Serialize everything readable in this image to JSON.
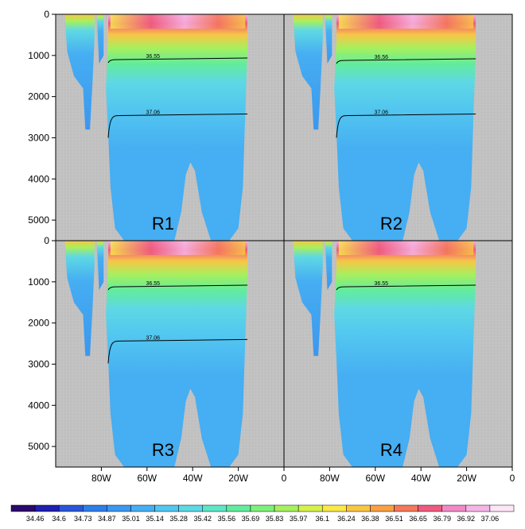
{
  "chart_data": {
    "type": "heatmap",
    "panels": [
      {
        "label": "R1",
        "contours": [
          {
            "value": "36.55",
            "depth": 1100
          },
          {
            "value": "37.06",
            "depth": 2460
          }
        ]
      },
      {
        "label": "R2",
        "contours": [
          {
            "value": "36.56",
            "depth": 1120
          },
          {
            "value": "37.06",
            "depth": 2460
          }
        ]
      },
      {
        "label": "R3",
        "contours": [
          {
            "value": "36.55",
            "depth": 1120
          },
          {
            "value": "37.06",
            "depth": 2440
          }
        ]
      },
      {
        "label": "R4",
        "contours": [
          {
            "value": "36.55",
            "depth": 1120
          }
        ]
      }
    ],
    "y_ticks": [
      "0",
      "1000",
      "2000",
      "3000",
      "4000",
      "5000"
    ],
    "x_ticks": [
      "80W",
      "60W",
      "40W",
      "20W",
      "0"
    ],
    "ylim": [
      0,
      5500
    ],
    "xlim": [
      -100,
      0
    ],
    "colorbar_levels": [
      "34.46",
      "34.6",
      "34.73",
      "34.87",
      "35.01",
      "35.14",
      "35.28",
      "35.42",
      "35.56",
      "35.69",
      "35.83",
      "35.97",
      "36.1",
      "36.24",
      "36.38",
      "36.51",
      "36.65",
      "36.79",
      "36.92",
      "37.06"
    ],
    "colorbar_colors": [
      "#2a0a6b",
      "#1f1fb0",
      "#2a55d8",
      "#2f7ee8",
      "#3b97ef",
      "#46aef2",
      "#52c6f0",
      "#5ed8e4",
      "#5ee6c6",
      "#62ec9e",
      "#7ef07a",
      "#a6f05e",
      "#d6f04e",
      "#f8e84a",
      "#f8c646",
      "#f8a044",
      "#f4785a",
      "#ee5a7e",
      "#f08ac6",
      "#f6b4e6",
      "#fde6f6"
    ]
  }
}
